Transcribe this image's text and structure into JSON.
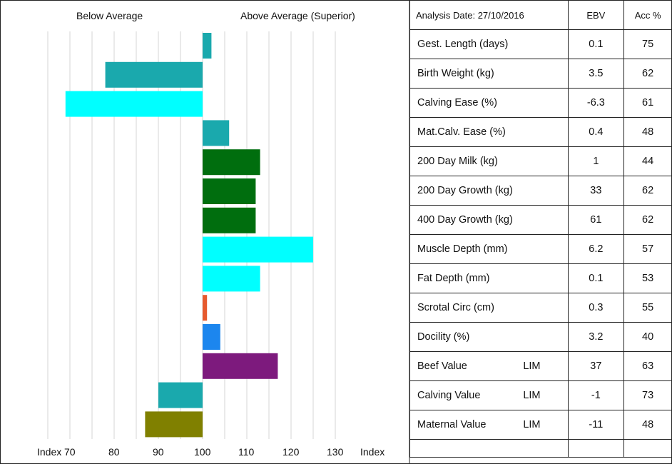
{
  "chart_data": {
    "type": "bar",
    "orientation": "horizontal",
    "baseline": 100,
    "xlim": [
      60,
      133
    ],
    "x_ticks": [
      70,
      80,
      90,
      100,
      110,
      120,
      130
    ],
    "x_tick_labels": [
      "70",
      "80",
      "90",
      "100",
      "110",
      "120",
      "130"
    ],
    "x_axis_left_label": "Index",
    "x_axis_right_label": "Index",
    "header_left": "Below Average",
    "header_right": "Above Average (Superior)",
    "categories": [
      "Gest. Length (days)",
      "Birth Weight (kg)",
      "Calving Ease (%)",
      "Mat.Calv. Ease (%)",
      "200 Day Milk (kg)",
      "200 Day Growth (kg)",
      "400 Day Growth (kg)",
      "Muscle Depth (mm)",
      "Fat Depth (mm)",
      "Scrotal Circ (cm)",
      "Docility (%)",
      "Beef Value",
      "Calving Value",
      "Maternal Value"
    ],
    "values": [
      102,
      78,
      69,
      106,
      113,
      112,
      112,
      125,
      113,
      101,
      104,
      117,
      90,
      87
    ],
    "colors": [
      "#1aa9ad",
      "#1aa9ad",
      "#00ffff",
      "#1aa9ad",
      "#006e0e",
      "#006e0e",
      "#006e0e",
      "#00ffff",
      "#00ffff",
      "#e65a2e",
      "#1c86ee",
      "#7d1a7d",
      "#1aa9ad",
      "#808000"
    ],
    "grid": true
  },
  "table": {
    "header": {
      "date": "Analysis Date: 27/10/2016",
      "ebv": "EBV",
      "acc": "Acc %"
    },
    "rows": [
      {
        "trait": "Gest. Length (days)",
        "tag": "",
        "ebv": "0.1",
        "acc": "75"
      },
      {
        "trait": "Birth Weight (kg)",
        "tag": "",
        "ebv": "3.5",
        "acc": "62"
      },
      {
        "trait": "Calving Ease (%)",
        "tag": "",
        "ebv": "-6.3",
        "acc": "61"
      },
      {
        "trait": "Mat.Calv. Ease (%)",
        "tag": "",
        "ebv": "0.4",
        "acc": "48"
      },
      {
        "trait": "200 Day Milk (kg)",
        "tag": "",
        "ebv": "1",
        "acc": "44"
      },
      {
        "trait": "200 Day Growth (kg)",
        "tag": "",
        "ebv": "33",
        "acc": "62"
      },
      {
        "trait": "400 Day Growth (kg)",
        "tag": "",
        "ebv": "61",
        "acc": "62"
      },
      {
        "trait": "Muscle Depth (mm)",
        "tag": "",
        "ebv": "6.2",
        "acc": "57"
      },
      {
        "trait": "Fat Depth (mm)",
        "tag": "",
        "ebv": "0.1",
        "acc": "53"
      },
      {
        "trait": "Scrotal Circ (cm)",
        "tag": "",
        "ebv": "0.3",
        "acc": "55"
      },
      {
        "trait": "Docility (%)",
        "tag": "",
        "ebv": "3.2",
        "acc": "40"
      },
      {
        "trait": "Beef Value",
        "tag": "LIM",
        "ebv": "37",
        "acc": "63"
      },
      {
        "trait": "Calving Value",
        "tag": "LIM",
        "ebv": "-1",
        "acc": "73"
      },
      {
        "trait": "Maternal Value",
        "tag": "LIM",
        "ebv": "-11",
        "acc": "48"
      }
    ]
  }
}
